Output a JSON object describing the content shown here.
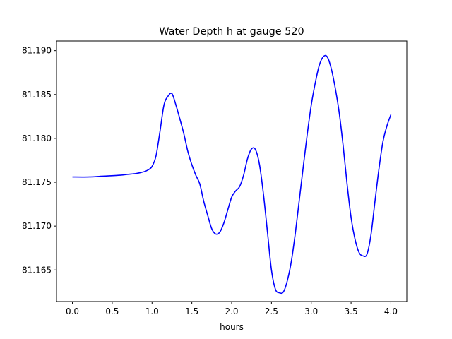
{
  "chart_data": {
    "type": "line",
    "title": "Water Depth h at gauge 520",
    "xlabel": "hours",
    "ylabel": "",
    "xlim": [
      -0.2,
      4.2
    ],
    "ylim": [
      81.1614,
      81.1911
    ],
    "grid": false,
    "xticks": [
      0.0,
      0.5,
      1.0,
      1.5,
      2.0,
      2.5,
      3.0,
      3.5,
      4.0
    ],
    "xtick_labels": [
      "0.0",
      "0.5",
      "1.0",
      "1.5",
      "2.0",
      "2.5",
      "3.0",
      "3.5",
      "4.0"
    ],
    "yticks": [
      81.165,
      81.17,
      81.175,
      81.18,
      81.185,
      81.19
    ],
    "ytick_labels": [
      "81.165",
      "81.170",
      "81.175",
      "81.180",
      "81.185",
      "81.190"
    ],
    "series": [
      {
        "color": "#0000ff",
        "x": [
          0.0,
          0.2,
          0.4,
          0.6,
          0.7,
          0.8,
          0.9,
          0.95,
          1.0,
          1.05,
          1.1,
          1.15,
          1.2,
          1.25,
          1.3,
          1.35,
          1.4,
          1.45,
          1.5,
          1.55,
          1.6,
          1.65,
          1.7,
          1.75,
          1.8,
          1.85,
          1.9,
          1.95,
          2.0,
          2.05,
          2.1,
          2.15,
          2.2,
          2.25,
          2.3,
          2.35,
          2.4,
          2.45,
          2.5,
          2.55,
          2.6,
          2.65,
          2.7,
          2.75,
          2.8,
          2.85,
          2.9,
          2.95,
          3.0,
          3.05,
          3.1,
          3.15,
          3.2,
          3.25,
          3.3,
          3.35,
          3.4,
          3.45,
          3.5,
          3.55,
          3.6,
          3.65,
          3.7,
          3.75,
          3.8,
          3.85,
          3.9,
          3.95,
          4.0
        ],
        "y": [
          81.1756,
          81.1756,
          81.1757,
          81.1758,
          81.1759,
          81.176,
          81.1762,
          81.1764,
          81.1768,
          81.178,
          81.1808,
          81.1838,
          81.1848,
          81.1851,
          81.1838,
          81.1822,
          81.1805,
          81.1785,
          81.177,
          81.1758,
          81.1748,
          81.1728,
          81.1712,
          81.1697,
          81.1691,
          81.1693,
          81.1703,
          81.1718,
          81.1733,
          81.174,
          81.1745,
          81.1758,
          81.1777,
          81.1788,
          81.1787,
          81.177,
          81.1736,
          81.1693,
          81.165,
          81.1628,
          81.1624,
          81.1625,
          81.1638,
          81.166,
          81.1692,
          81.173,
          81.1768,
          81.1805,
          81.1838,
          81.1863,
          81.1883,
          81.1893,
          81.1893,
          81.188,
          81.1858,
          81.183,
          81.1792,
          81.1748,
          81.171,
          81.1685,
          81.167,
          81.1666,
          81.1668,
          81.169,
          81.1728,
          81.1765,
          81.1796,
          81.1814,
          81.1827
        ]
      }
    ]
  }
}
